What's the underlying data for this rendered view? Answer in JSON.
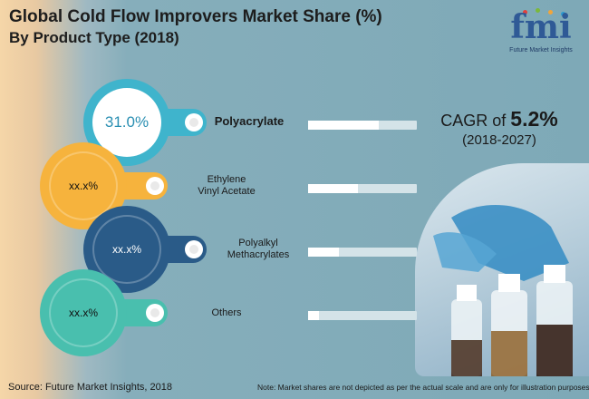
{
  "chart_data": {
    "type": "bar",
    "title": "Global Cold Flow Improvers Market Share (%)",
    "subtitle": "By Product Type (2018)",
    "categories": [
      "Polyacrylate",
      "Ethylene Vinyl Acetate",
      "Polyalkyl Methacrylates",
      "Others"
    ],
    "label_lines": [
      [
        "Polyacrylate"
      ],
      [
        "Ethylene",
        "Vinyl Acetate"
      ],
      [
        "Polyalkyl",
        "Methacrylates"
      ],
      [
        "Others"
      ]
    ],
    "value_labels": [
      "31.0%",
      "xx.x%",
      "xx.x%",
      "xx.x%"
    ],
    "values": [
      31.0,
      null,
      null,
      null
    ],
    "bar_fill_fraction": [
      0.65,
      0.46,
      0.28,
      0.1
    ],
    "colors": [
      "#3fb4cc",
      "#f6b33d",
      "#2a5b88",
      "#49bfae"
    ],
    "ylim": [
      0,
      100
    ]
  },
  "cagr": {
    "prefix": "CAGR of",
    "value": "5.2%",
    "period": "(2018-2027)"
  },
  "logo": {
    "mark": "fmi",
    "tagline": "Future Market Insights",
    "dot_colors": [
      "#e5403b",
      "#7bb83b",
      "#f2a53a",
      "#2b9bd1"
    ]
  },
  "source": "Source: Future Market Insights, 2018",
  "note": "Note: Market shares are not depicted as per the actual scale and are only for illustration purposes.",
  "photo": {
    "icon": "lab-bottles-photo"
  }
}
